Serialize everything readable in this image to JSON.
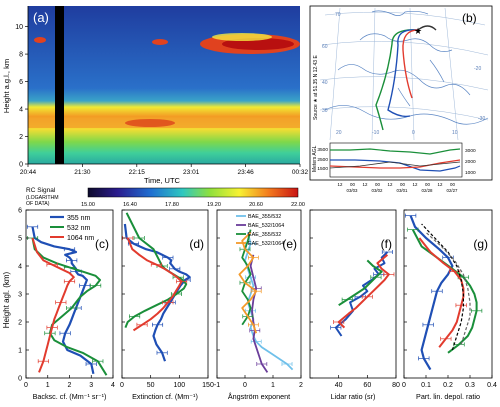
{
  "panel_labels": [
    "(a)",
    "(b)",
    "(c)",
    "(d)",
    "(e)",
    "(f)",
    "(g)"
  ],
  "colors": {
    "blue": "#1f4fb5",
    "green": "#1a8f3a",
    "red": "#e23b2e",
    "light_blue": "#6fc0ea",
    "purple": "#6a3d9a",
    "orange": "#f39a2b",
    "grey": "#666666",
    "black": "#000000"
  },
  "chart_data": [
    {
      "id": "a",
      "type": "heatmap",
      "ylabel": "Height a.g.l., km",
      "xlabel": "Time, UTC",
      "x_ticks": [
        "20:44",
        "21:30",
        "22:15",
        "23:01",
        "23:46",
        "00:32"
      ],
      "y_ticks": [
        "0",
        "2",
        "4",
        "6",
        "8",
        "10"
      ],
      "ylim": [
        0,
        11.5
      ],
      "colorbar": {
        "title": "RC Signal",
        "note_lines": [
          "(LOGARITHM",
          "OF DATA)"
        ],
        "ticks": [
          "15.00",
          "16.40",
          "17.80",
          "19.20",
          "20.60",
          "22.00"
        ],
        "range": [
          15.0,
          22.0
        ]
      }
    },
    {
      "id": "b",
      "type": "other",
      "source_label": "Source ★ at 51.35 N 12.43 E",
      "lower_ylabel": "Meters AGL",
      "lower_yticks_left": [
        "1500",
        "2500",
        "3500"
      ],
      "lower_yticks_right": [
        "1000",
        "2000",
        "3000"
      ],
      "lower_xticks_top": [
        "12",
        "00",
        "12",
        "00",
        "12",
        "00",
        "12",
        "00",
        "12",
        "00"
      ],
      "lower_xticks_bottom": [
        "03/03",
        "03/02",
        "03/01",
        "02/28",
        "02/27"
      ],
      "grid_labels": [
        "70",
        "60",
        "40",
        "30",
        "20",
        "-10",
        "0",
        "10",
        "-20",
        "-30"
      ]
    },
    {
      "id": "c",
      "type": "line",
      "xlabel": "Backsc. cf. (Mm⁻¹ sr⁻¹)",
      "ylabel": "Height agl. (km)",
      "xlim": [
        0,
        4
      ],
      "ylim": [
        0,
        6
      ],
      "x_ticks": [
        "0",
        "1",
        "2",
        "3",
        "4"
      ],
      "y_ticks": [
        "0",
        "1",
        "2",
        "3",
        "4",
        "5",
        "6"
      ],
      "legend": "top-right",
      "series": [
        {
          "name": "355 nm",
          "color": "#1f4fb5",
          "width": 2.2,
          "x": [
            3.1,
            3.0,
            2.5,
            1.9,
            1.7,
            1.8,
            2.0,
            2.1,
            2.2,
            2.3,
            2.4,
            2.5,
            2.6,
            2.7,
            2.8,
            2.6,
            2.4,
            2.3,
            2.3,
            2.2,
            2.1,
            2.1,
            2.0,
            1.8,
            2.3,
            2.0,
            1.3,
            0.7,
            0.4,
            0.3
          ],
          "y": [
            0.15,
            0.5,
            0.8,
            1.0,
            1.3,
            1.6,
            1.9,
            2.1,
            2.3,
            2.5,
            2.7,
            2.9,
            3.1,
            3.3,
            3.5,
            3.65,
            3.7,
            3.8,
            3.9,
            4.0,
            4.1,
            4.2,
            4.3,
            4.4,
            4.5,
            4.6,
            4.7,
            4.85,
            5.0,
            5.4
          ]
        },
        {
          "name": "532 nm",
          "color": "#1a8f3a",
          "width": 2.0,
          "x": [
            3.7,
            3.3,
            2.6,
            1.9,
            1.3,
            1.1,
            1.2,
            1.5,
            1.8,
            2.1,
            2.3,
            2.5,
            2.8,
            3.2,
            3.4,
            3.2,
            2.6,
            2.0,
            1.4,
            0.8,
            0.4,
            0.3
          ],
          "y": [
            0.1,
            0.6,
            0.9,
            1.1,
            1.35,
            1.6,
            1.9,
            2.1,
            2.3,
            2.5,
            2.7,
            2.9,
            3.1,
            3.3,
            3.5,
            3.65,
            3.8,
            3.95,
            4.1,
            4.3,
            4.6,
            5.0
          ]
        },
        {
          "name": "1064 nm",
          "color": "#e23b2e",
          "width": 2.0,
          "x": [
            0.6,
            0.8,
            0.9,
            1.0,
            1.1,
            1.2,
            1.3,
            1.4,
            1.5,
            1.6,
            1.7,
            1.8,
            1.9,
            2.0,
            2.2,
            2.0,
            1.6,
            1.2,
            0.8,
            0.5,
            0.3
          ],
          "y": [
            0.2,
            0.6,
            0.9,
            1.2,
            1.5,
            1.8,
            2.1,
            2.3,
            2.5,
            2.7,
            2.9,
            3.1,
            3.3,
            3.45,
            3.6,
            3.75,
            3.9,
            4.05,
            4.2,
            4.5,
            5.0
          ]
        }
      ]
    },
    {
      "id": "d",
      "type": "line",
      "xlabel": "Extinction cf. (Mm⁻¹)",
      "xlim": [
        0,
        150
      ],
      "ylim": [
        0,
        6
      ],
      "x_ticks": [
        "0",
        "50",
        "100",
        "150"
      ],
      "series": [
        {
          "name": "",
          "color": "#1f4fb5",
          "width": 2.2,
          "x": [
            75,
            70,
            60,
            55,
            58,
            62,
            68,
            72,
            78,
            84,
            90,
            96,
            102,
            110,
            118,
            112,
            100,
            92,
            88,
            84,
            86,
            80,
            70,
            60,
            42,
            20,
            8,
            5
          ],
          "y": [
            0.6,
            0.9,
            1.2,
            1.5,
            1.7,
            1.9,
            2.1,
            2.3,
            2.5,
            2.7,
            2.9,
            3.1,
            3.3,
            3.5,
            3.6,
            3.7,
            3.8,
            3.9,
            4.0,
            4.1,
            4.2,
            4.3,
            4.4,
            4.5,
            4.6,
            4.8,
            5.0,
            5.5
          ]
        },
        {
          "name": "",
          "color": "#1a8f3a",
          "width": 2.0,
          "x": [
            8,
            30,
            55,
            60,
            65,
            70,
            75,
            82,
            90,
            98,
            106,
            112,
            108,
            95,
            80,
            60,
            40,
            22,
            10,
            6
          ],
          "y": [
            5.9,
            5.0,
            4.6,
            4.4,
            4.2,
            4.0,
            3.9,
            3.8,
            3.7,
            3.6,
            3.5,
            3.35,
            3.2,
            3.0,
            2.8,
            2.6,
            2.4,
            2.2,
            2.0,
            1.8
          ]
        },
        {
          "name": "",
          "color": "#e23b2e",
          "width": 2.0,
          "x": [
            20,
            35,
            50,
            62,
            72,
            80,
            88,
            94,
            100,
            104,
            96,
            86,
            74,
            60,
            44,
            30,
            18,
            10
          ],
          "y": [
            1.7,
            1.9,
            2.1,
            2.3,
            2.5,
            2.7,
            2.9,
            3.1,
            3.3,
            3.45,
            3.6,
            3.75,
            3.9,
            4.05,
            4.2,
            4.4,
            4.6,
            5.0
          ]
        }
      ]
    },
    {
      "id": "e",
      "type": "line",
      "xlabel": "Ångström exponent",
      "xlim": [
        -1,
        2
      ],
      "ylim": [
        0,
        6
      ],
      "x_ticks": [
        "-1",
        "0",
        "1",
        "2"
      ],
      "legend": "top",
      "series": [
        {
          "name": "BAE_355/532",
          "color": "#6fc0ea",
          "width": 1.8,
          "x": [
            1.7,
            1.5,
            1.2,
            0.9,
            0.6,
            0.4,
            0.3,
            0.2,
            0.3,
            0.2,
            0.1,
            0.2,
            0.3,
            0.2,
            0.1,
            0.0,
            0.1,
            0.2,
            0.1
          ],
          "y": [
            0.3,
            0.5,
            0.7,
            0.9,
            1.1,
            1.3,
            1.5,
            1.8,
            2.1,
            2.4,
            2.7,
            3.0,
            3.3,
            3.6,
            3.9,
            4.2,
            4.5,
            4.8,
            5.2
          ]
        },
        {
          "name": "BAE_532/1064",
          "color": "#6a3d9a",
          "width": 1.8,
          "x": [
            0.8,
            0.6,
            0.5,
            0.4,
            0.3,
            0.35,
            0.3,
            0.25,
            0.3,
            0.4,
            0.3,
            0.2,
            0.3
          ],
          "y": [
            0.2,
            0.5,
            0.8,
            1.1,
            1.4,
            1.7,
            2.0,
            2.4,
            2.8,
            3.2,
            3.6,
            4.0,
            4.4
          ]
        },
        {
          "name": "EAE_355/532",
          "color": "#1a8f3a",
          "width": 1.8,
          "x": [
            -0.1,
            0.1,
            0.2,
            0.1,
            -0.1,
            0.0,
            0.2,
            0.1,
            -0.1,
            0.0,
            0.1,
            0.2
          ],
          "y": [
            1.9,
            2.2,
            2.5,
            2.8,
            3.1,
            3.4,
            3.7,
            4.0,
            4.3,
            4.6,
            4.9,
            5.3
          ]
        },
        {
          "name": "EAE_532/1064",
          "color": "#f39a2b",
          "width": 1.8,
          "x": [
            0.4,
            0.3,
            0.1,
            -0.1,
            0.2,
            0.4,
            0.0,
            -0.2,
            0.1,
            0.3,
            0.0,
            -0.1,
            0.2
          ],
          "y": [
            1.6,
            1.9,
            2.2,
            2.5,
            2.8,
            3.1,
            3.4,
            3.7,
            4.0,
            4.3,
            4.6,
            4.9,
            5.2
          ]
        }
      ]
    },
    {
      "id": "f",
      "type": "line",
      "xlabel": "Lidar ratio (sr)",
      "xlim": [
        20,
        80
      ],
      "ylim": [
        0,
        6
      ],
      "x_ticks": [
        "40",
        "60",
        "80"
      ],
      "series": [
        {
          "name": "",
          "color": "#1f4fb5",
          "width": 2.0,
          "x": [
            42,
            38,
            45,
            50,
            48,
            55,
            60,
            57,
            63,
            68,
            65,
            72,
            70,
            74
          ],
          "y": [
            1.5,
            1.8,
            2.1,
            2.4,
            2.7,
            2.9,
            3.1,
            3.3,
            3.5,
            3.7,
            3.9,
            4.1,
            4.3,
            4.5
          ]
        },
        {
          "name": "",
          "color": "#1a8f3a",
          "width": 2.0,
          "x": [
            40,
            46,
            52,
            58,
            62,
            66,
            70,
            64,
            60
          ],
          "y": [
            2.6,
            2.8,
            3.0,
            3.2,
            3.4,
            3.6,
            3.8,
            4.0,
            4.2
          ]
        },
        {
          "name": "",
          "color": "#e23b2e",
          "width": 2.0,
          "x": [
            44,
            40,
            47,
            52,
            56,
            60,
            64,
            68,
            72,
            75,
            70,
            67,
            74
          ],
          "y": [
            1.8,
            2.0,
            2.3,
            2.5,
            2.7,
            2.9,
            3.1,
            3.3,
            3.5,
            3.7,
            3.9,
            4.1,
            4.4
          ]
        }
      ]
    },
    {
      "id": "g",
      "type": "line",
      "xlabel": "Part. lin. depol. ratio",
      "xlim": [
        0,
        0.4
      ],
      "ylim": [
        0,
        6
      ],
      "x_ticks": [
        "0",
        "0.1",
        "0.2",
        "0.3",
        "0.4"
      ],
      "series": [
        {
          "name": "",
          "color": "#1f4fb5",
          "width": 2.2,
          "x": [
            0.12,
            0.09,
            0.08,
            0.09,
            0.1,
            0.11,
            0.12,
            0.13,
            0.14,
            0.15,
            0.17,
            0.2,
            0.22,
            0.2,
            0.16,
            0.1,
            0.05,
            0.03
          ],
          "y": [
            0.3,
            0.7,
            1.0,
            1.3,
            1.6,
            1.9,
            2.2,
            2.5,
            2.8,
            3.1,
            3.4,
            3.7,
            4.0,
            4.3,
            4.6,
            5.0,
            5.4,
            5.8
          ]
        },
        {
          "name": "",
          "color": "#1a8f3a",
          "width": 2.0,
          "x": [
            0.2,
            0.25,
            0.29,
            0.31,
            0.32,
            0.33,
            0.33,
            0.32,
            0.3,
            0.27,
            0.22,
            0.15,
            0.08,
            0.04
          ],
          "y": [
            0.9,
            1.2,
            1.5,
            1.8,
            2.1,
            2.4,
            2.7,
            3.0,
            3.3,
            3.6,
            3.9,
            4.3,
            4.7,
            5.3
          ]
        },
        {
          "name": "",
          "color": "#e23b2e",
          "width": 2.0,
          "x": [
            0.16,
            0.19,
            0.22,
            0.24,
            0.25,
            0.26,
            0.27,
            0.27,
            0.26,
            0.23,
            0.18,
            0.12,
            0.07
          ],
          "y": [
            1.1,
            1.4,
            1.7,
            2.0,
            2.3,
            2.6,
            2.9,
            3.2,
            3.5,
            3.8,
            4.1,
            4.5,
            5.0
          ]
        },
        {
          "name": "",
          "color": "#000000",
          "width": 1.2,
          "dashed": true,
          "x": [
            0.22,
            0.24,
            0.26,
            0.27,
            0.27,
            0.26,
            0.24,
            0.2,
            0.14,
            0.08
          ],
          "y": [
            1.0,
            1.5,
            2.0,
            2.5,
            3.0,
            3.5,
            4.0,
            4.5,
            5.0,
            5.5
          ]
        },
        {
          "name": "",
          "color": "#666666",
          "width": 1.2,
          "dashed": true,
          "x": [
            0.26,
            0.28,
            0.3,
            0.3,
            0.29,
            0.27,
            0.23,
            0.17,
            0.1
          ],
          "y": [
            1.2,
            1.7,
            2.2,
            2.7,
            3.2,
            3.7,
            4.2,
            4.7,
            5.2
          ]
        }
      ]
    }
  ]
}
